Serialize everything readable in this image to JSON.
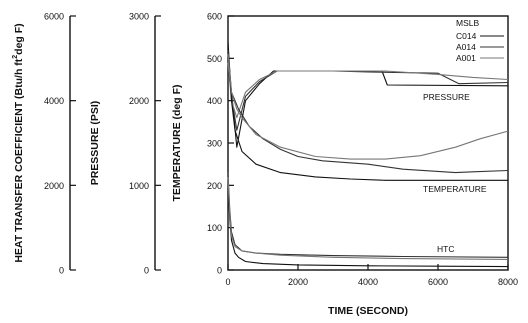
{
  "chart_data": {
    "type": "line",
    "xlabel": "TIME (SECOND)",
    "x_ticks": [
      0,
      2000,
      4000,
      6000,
      8000
    ],
    "xlim": [
      0,
      8000
    ],
    "left_axes": [
      {
        "label": "HEAT TRANSFER COEFFICIENT (Btu/h ft²deg F)",
        "label_main": "HEAT TRANSFER COEFFICIENT (Btu/h ft",
        "label_sup": "2",
        "label_tail": "deg F)",
        "ticks": [
          0,
          2000,
          4000,
          6000
        ],
        "range": [
          0,
          6000
        ]
      },
      {
        "label": "PRESSURE (PSI)",
        "ticks": [
          0,
          1000,
          2000,
          3000
        ],
        "range": [
          0,
          3000
        ]
      }
    ],
    "ylabel": "TEMPERATURE (deg F)",
    "y_ticks": [
      0,
      100,
      200,
      300,
      400,
      500,
      600
    ],
    "ylim": [
      0,
      600
    ],
    "legend": {
      "title": "MSLB",
      "placement": "top-right",
      "entries": [
        "C014",
        "A014",
        "A001"
      ]
    },
    "annotations": [
      "PRESSURE",
      "TEMPERATURE",
      "HTC"
    ],
    "series": [
      {
        "name": "C014",
        "group": "PRESSURE",
        "x": [
          0,
          100,
          250,
          500,
          900,
          1300,
          3000,
          4400,
          4550,
          8000
        ],
        "y": [
          490,
          420,
          290,
          400,
          440,
          470,
          470,
          470,
          437,
          435
        ]
      },
      {
        "name": "A014",
        "group": "PRESSURE",
        "x": [
          0,
          100,
          250,
          500,
          900,
          1400,
          3000,
          4000,
          6000,
          6600,
          8000
        ],
        "y": [
          490,
          410,
          330,
          410,
          445,
          470,
          470,
          468,
          465,
          440,
          443
        ]
      },
      {
        "name": "A001",
        "group": "PRESSURE",
        "x": [
          0,
          100,
          250,
          500,
          900,
          1400,
          3000,
          4500,
          6000,
          7000,
          8000
        ],
        "y": [
          490,
          400,
          360,
          420,
          450,
          470,
          470,
          470,
          462,
          455,
          450
        ]
      },
      {
        "name": "C014",
        "group": "TEMPERATURE",
        "x": [
          0,
          100,
          200,
          400,
          800,
          1500,
          2500,
          3500,
          4500,
          5500,
          6500,
          8000
        ],
        "y": [
          540,
          400,
          330,
          280,
          250,
          230,
          220,
          215,
          212,
          212,
          212,
          212
        ]
      },
      {
        "name": "A014",
        "group": "TEMPERATURE",
        "x": [
          0,
          100,
          300,
          600,
          1000,
          1500,
          2000,
          2700,
          4000,
          5000,
          6500,
          7000,
          8000
        ],
        "y": [
          520,
          420,
          380,
          340,
          310,
          285,
          268,
          258,
          250,
          238,
          230,
          232,
          235
        ]
      },
      {
        "name": "A001",
        "group": "TEMPERATURE",
        "x": [
          0,
          100,
          250,
          400,
          800,
          1500,
          2500,
          3500,
          4500,
          5500,
          6500,
          7200,
          8000
        ],
        "y": [
          510,
          420,
          380,
          360,
          320,
          290,
          268,
          262,
          262,
          270,
          290,
          310,
          328
        ]
      },
      {
        "name": "C014",
        "group": "HTC",
        "x": [
          0,
          50,
          100,
          200,
          300,
          500,
          1000,
          2000,
          4000,
          6000,
          8000
        ],
        "y": [
          200,
          120,
          70,
          40,
          30,
          20,
          15,
          12,
          10,
          9,
          8
        ]
      },
      {
        "name": "A014",
        "group": "HTC",
        "x": [
          0,
          50,
          100,
          200,
          400,
          800,
          1500,
          3000,
          5000,
          8000
        ],
        "y": [
          230,
          140,
          90,
          60,
          45,
          40,
          37,
          34,
          32,
          30
        ]
      },
      {
        "name": "A001",
        "group": "HTC",
        "x": [
          0,
          50,
          100,
          200,
          400,
          800,
          1500,
          3000,
          5000,
          8000
        ],
        "y": [
          220,
          130,
          80,
          55,
          45,
          40,
          35,
          30,
          27,
          25
        ]
      }
    ],
    "series_styles": {
      "C014": "#111111",
      "A014": "#333333",
      "A001": "#777777"
    },
    "grid": false
  }
}
